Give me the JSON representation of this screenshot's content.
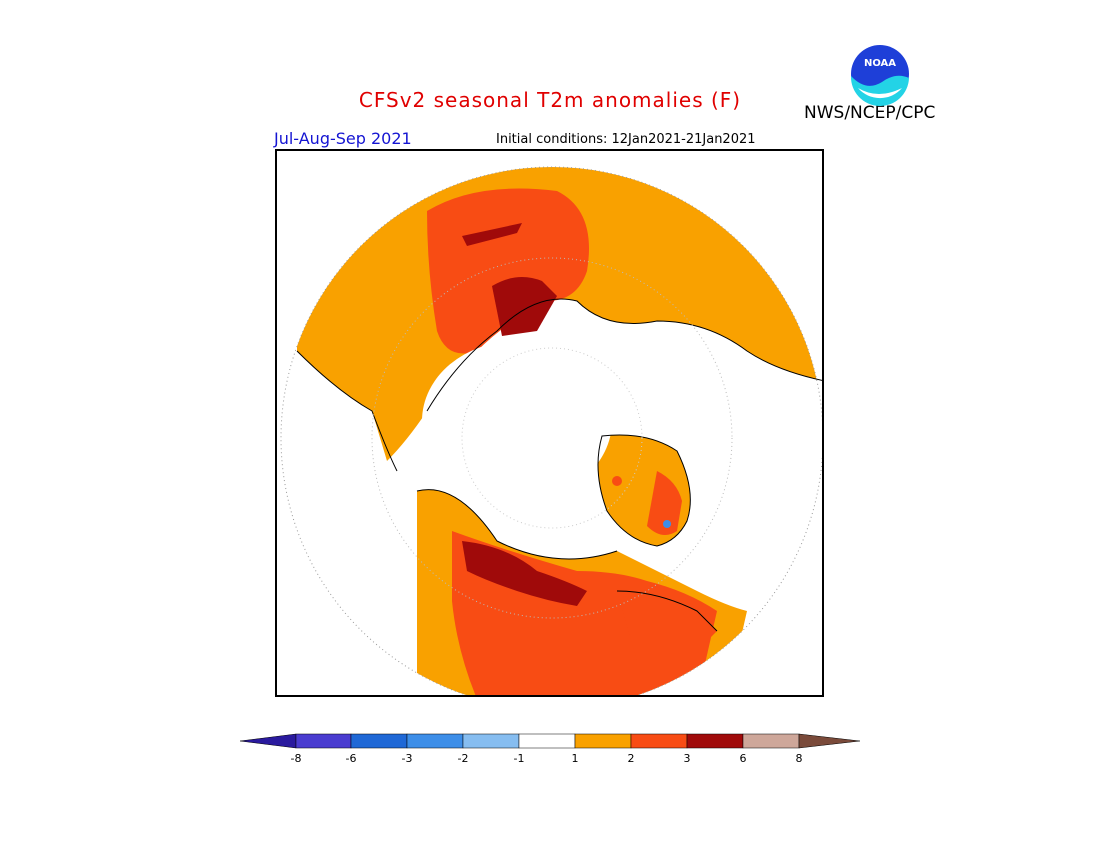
{
  "header": {
    "title": "CFSv2 seasonal T2m anomalies (F)",
    "season": "Jul-Aug-Sep 2021",
    "initial_conditions": "Initial conditions: 12Jan2021-21Jan2021",
    "agency": "NWS/NCEP/CPC",
    "logo_text": "NOAA"
  },
  "colorbar": {
    "ticks": [
      "-8",
      "-6",
      "-3",
      "-2",
      "-1",
      "1",
      "2",
      "3",
      "6",
      "8"
    ],
    "colors": [
      "#2a1a9e",
      "#4a3cd0",
      "#1f68d6",
      "#3d8ee8",
      "#86bdf0",
      "#ffffff",
      "#f9a100",
      "#f84c14",
      "#a00a0a",
      "#cea79a",
      "#7a4a3a"
    ]
  },
  "map": {
    "projection": "north-polar-stereographic",
    "colors": {
      "orange": "#f9a100",
      "red": "#f84c14",
      "dark_red": "#a00a0a",
      "blue": "#3d8ee8"
    }
  }
}
